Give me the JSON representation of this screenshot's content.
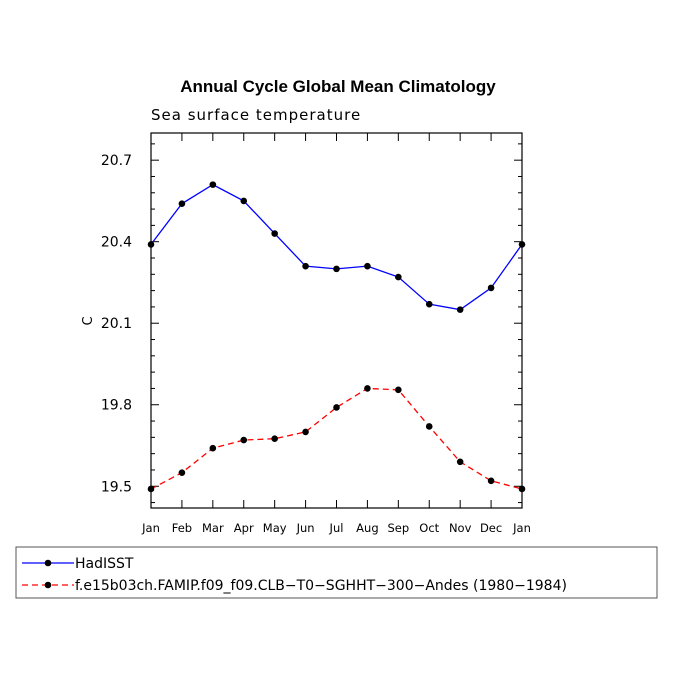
{
  "chart_data": {
    "type": "line",
    "title": "Annual Cycle Global Mean Climatology",
    "subtitle": "Sea surface temperature",
    "xlabel": "",
    "ylabel": "C",
    "categories": [
      "Jan",
      "Feb",
      "Mar",
      "Apr",
      "May",
      "Jun",
      "Jul",
      "Aug",
      "Sep",
      "Oct",
      "Nov",
      "Dec",
      "Jan"
    ],
    "ylim": [
      19.42,
      20.8
    ],
    "yticks": [
      19.5,
      19.8,
      20.1,
      20.4,
      20.7
    ],
    "ytick_labels": [
      "19.5",
      "19.8",
      "20.1",
      "20.4",
      "20.7"
    ],
    "grid": false,
    "legend_position": "bottom-left",
    "series": [
      {
        "name": "HadISST",
        "color": "#0000ff",
        "dash": "solid",
        "marker": "circle",
        "values": [
          20.39,
          20.54,
          20.61,
          20.55,
          20.43,
          20.31,
          20.3,
          20.31,
          20.27,
          20.17,
          20.15,
          20.23,
          20.39
        ]
      },
      {
        "name": "f.e15b03ch.FAMIP.f09_f09.CLB−T0−SGHHT−300−Andes (1980−1984)",
        "color": "#ff0000",
        "dash": "dashed",
        "marker": "circle",
        "values": [
          19.49,
          19.55,
          19.64,
          19.67,
          19.675,
          19.7,
          19.79,
          19.86,
          19.855,
          19.72,
          19.59,
          19.52,
          19.49
        ]
      }
    ]
  }
}
